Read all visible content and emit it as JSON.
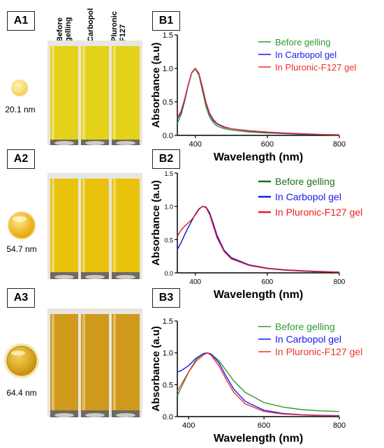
{
  "panels": [
    {
      "tag": "A1",
      "size_label": "20.1 nm",
      "sample_labels": [
        "Before\ngelling",
        "Carbopol",
        "Pluronic\nF127"
      ],
      "vial_color": "#e4d21a",
      "sphere_color": "#f7d86a"
    },
    {
      "tag": "A2",
      "size_label": "54.7 nm",
      "vial_color": "#e9c20c",
      "sphere_color": "#f2b70a"
    },
    {
      "tag": "A3",
      "size_label": "64.4 nm",
      "vial_color": "#cf9a1c",
      "sphere_color": "#d8a10c"
    }
  ],
  "chart_data": [
    {
      "tag": "B1",
      "type": "line",
      "xlabel": "Wavelength (nm)",
      "ylabel": "Absorbance (a.u)",
      "xlim": [
        350,
        800
      ],
      "ylim": [
        0,
        1.5
      ],
      "xticks": [
        400,
        600,
        800
      ],
      "yticks": [
        "0.0",
        "0.5",
        "1.0",
        "1.5"
      ],
      "legend_position": "top-right",
      "series": [
        {
          "name": "Before gelling",
          "color": "#2e9b2e",
          "x": [
            350,
            360,
            370,
            380,
            390,
            400,
            410,
            420,
            430,
            440,
            450,
            460,
            480,
            500,
            550,
            600,
            650,
            700,
            750,
            800
          ],
          "y": [
            0.18,
            0.3,
            0.5,
            0.74,
            0.93,
            0.99,
            0.9,
            0.66,
            0.42,
            0.27,
            0.19,
            0.14,
            0.1,
            0.08,
            0.05,
            0.035,
            0.025,
            0.015,
            0.01,
            0.005
          ]
        },
        {
          "name": "In Carbopol gel",
          "color": "#1a1aee",
          "x": [
            350,
            360,
            370,
            380,
            390,
            400,
            410,
            420,
            430,
            440,
            450,
            460,
            480,
            500,
            550,
            600,
            650,
            700,
            750,
            800
          ],
          "y": [
            0.24,
            0.34,
            0.52,
            0.75,
            0.94,
            1.0,
            0.92,
            0.7,
            0.47,
            0.31,
            0.22,
            0.17,
            0.12,
            0.1,
            0.065,
            0.045,
            0.03,
            0.02,
            0.012,
            0.008
          ]
        },
        {
          "name": "In Pluronic-F127 gel",
          "color": "#ee3030",
          "x": [
            350,
            360,
            370,
            380,
            390,
            400,
            410,
            420,
            430,
            440,
            450,
            460,
            480,
            500,
            550,
            600,
            650,
            700,
            750,
            800
          ],
          "y": [
            0.26,
            0.36,
            0.54,
            0.76,
            0.94,
            1.0,
            0.93,
            0.72,
            0.49,
            0.33,
            0.24,
            0.18,
            0.13,
            0.1,
            0.07,
            0.05,
            0.035,
            0.025,
            0.015,
            0.01
          ]
        }
      ]
    },
    {
      "tag": "B2",
      "type": "line",
      "xlabel": "Wavelength (nm)",
      "ylabel": "Absorbance (a.u)",
      "xlim": [
        350,
        800
      ],
      "ylim": [
        0,
        1.5
      ],
      "xticks": [
        400,
        600,
        800
      ],
      "yticks": [
        "0.0",
        "0.5",
        "1.0",
        "1.5"
      ],
      "legend_position": "top-right",
      "series": [
        {
          "name": "Before gelling",
          "color": "#1a6e1a",
          "x": [
            350,
            360,
            370,
            380,
            390,
            400,
            410,
            420,
            430,
            440,
            450,
            460,
            480,
            500,
            550,
            600,
            650,
            700,
            750,
            800
          ],
          "y": [
            0.35,
            0.45,
            0.57,
            0.68,
            0.78,
            0.88,
            0.96,
            1.0,
            0.98,
            0.88,
            0.72,
            0.55,
            0.33,
            0.22,
            0.11,
            0.065,
            0.04,
            0.025,
            0.015,
            0.01
          ]
        },
        {
          "name": "In Carbopol gel",
          "color": "#1a1aee",
          "x": [
            350,
            360,
            370,
            380,
            390,
            400,
            410,
            420,
            430,
            440,
            450,
            460,
            480,
            500,
            550,
            600,
            650,
            700,
            750,
            800
          ],
          "y": [
            0.35,
            0.45,
            0.57,
            0.68,
            0.78,
            0.88,
            0.96,
            1.0,
            0.99,
            0.9,
            0.74,
            0.57,
            0.34,
            0.23,
            0.12,
            0.07,
            0.045,
            0.03,
            0.02,
            0.012
          ]
        },
        {
          "name": "In Pluronic-F127 gel",
          "color": "#ee1a1a",
          "x": [
            350,
            360,
            370,
            380,
            390,
            400,
            410,
            420,
            430,
            440,
            450,
            460,
            480,
            500,
            550,
            600,
            650,
            700,
            750,
            800
          ],
          "y": [
            0.55,
            0.64,
            0.7,
            0.75,
            0.8,
            0.87,
            0.95,
            1.0,
            0.98,
            0.87,
            0.7,
            0.53,
            0.32,
            0.21,
            0.11,
            0.065,
            0.04,
            0.025,
            0.015,
            0.01
          ]
        }
      ]
    },
    {
      "tag": "B3",
      "type": "line",
      "xlabel": "Wavelength (nm)",
      "ylabel": "Absorbance (a.u)",
      "xlim": [
        370,
        800
      ],
      "ylim": [
        0,
        1.5
      ],
      "xticks": [
        400,
        600,
        800
      ],
      "yticks": [
        "0.0",
        "0.5",
        "1.0",
        "1.5"
      ],
      "legend_position": "top-right",
      "series": [
        {
          "name": "Before gelling",
          "color": "#2e9b2e",
          "x": [
            370,
            380,
            400,
            420,
            440,
            450,
            460,
            480,
            500,
            520,
            550,
            600,
            650,
            700,
            750,
            800
          ],
          "y": [
            0.33,
            0.45,
            0.7,
            0.9,
            0.99,
            1.0,
            0.98,
            0.88,
            0.72,
            0.56,
            0.38,
            0.22,
            0.15,
            0.11,
            0.09,
            0.08
          ]
        },
        {
          "name": "In Carbopol gel",
          "color": "#1a1aee",
          "x": [
            370,
            380,
            400,
            420,
            440,
            450,
            460,
            480,
            500,
            520,
            550,
            600,
            650,
            700,
            750,
            800
          ],
          "y": [
            0.7,
            0.72,
            0.8,
            0.92,
            0.99,
            1.0,
            0.98,
            0.85,
            0.63,
            0.43,
            0.24,
            0.1,
            0.05,
            0.03,
            0.02,
            0.015
          ]
        },
        {
          "name": "In Pluronic-F127 gel",
          "color": "#ee3030",
          "x": [
            370,
            380,
            400,
            420,
            440,
            450,
            460,
            480,
            500,
            520,
            550,
            600,
            650,
            700,
            750,
            800
          ],
          "y": [
            0.4,
            0.5,
            0.7,
            0.87,
            0.97,
            1.0,
            0.96,
            0.8,
            0.58,
            0.38,
            0.2,
            0.08,
            0.04,
            0.025,
            0.015,
            0.01
          ]
        }
      ]
    }
  ]
}
